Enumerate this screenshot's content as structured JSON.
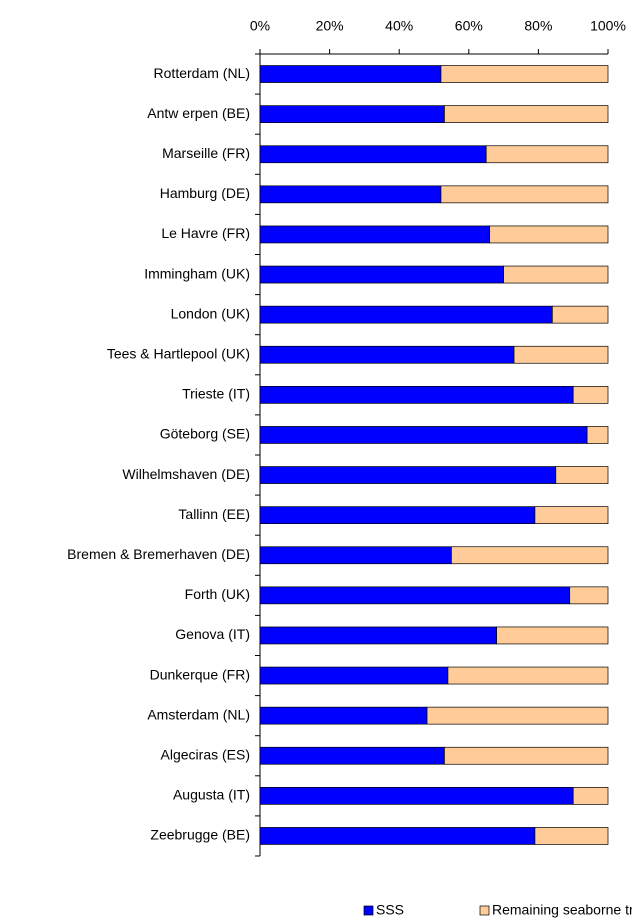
{
  "chart_data": {
    "type": "stacked-barh",
    "categories": [
      "Rotterdam (NL)",
      "Antw erpen (BE)",
      "Marseille (FR)",
      "Hamburg (DE)",
      "Le Havre (FR)",
      "Immingham (UK)",
      "London (UK)",
      "Tees & Hartlepool (UK)",
      "Trieste (IT)",
      "Göteborg (SE)",
      "Wilhelmshaven (DE)",
      "Tallinn (EE)",
      "Bremen & Bremerhaven (DE)",
      "Forth (UK)",
      "Genova (IT)",
      "Dunkerque (FR)",
      "Amsterdam (NL)",
      "Algeciras (ES)",
      "Augusta (IT)",
      "Zeebrugge (BE)"
    ],
    "series": [
      {
        "name": "SSS",
        "color": "#0000ff",
        "values": [
          52,
          53,
          65,
          52,
          66,
          70,
          84,
          73,
          90,
          94,
          85,
          79,
          55,
          89,
          68,
          54,
          48,
          53,
          90,
          79
        ]
      },
      {
        "name": "Remaining seaborne transport",
        "color": "#ffcc99",
        "values": [
          48,
          47,
          35,
          48,
          34,
          30,
          16,
          27,
          10,
          6,
          15,
          21,
          45,
          11,
          32,
          46,
          52,
          47,
          10,
          21
        ]
      }
    ],
    "xlim": [
      0,
      100
    ],
    "xticks": [
      {
        "value": 0,
        "label": "0%"
      },
      {
        "value": 20,
        "label": "20%"
      },
      {
        "value": 40,
        "label": "40%"
      },
      {
        "value": 60,
        "label": "60%"
      },
      {
        "value": 80,
        "label": "80%"
      },
      {
        "value": 100,
        "label": "100%"
      }
    ]
  }
}
